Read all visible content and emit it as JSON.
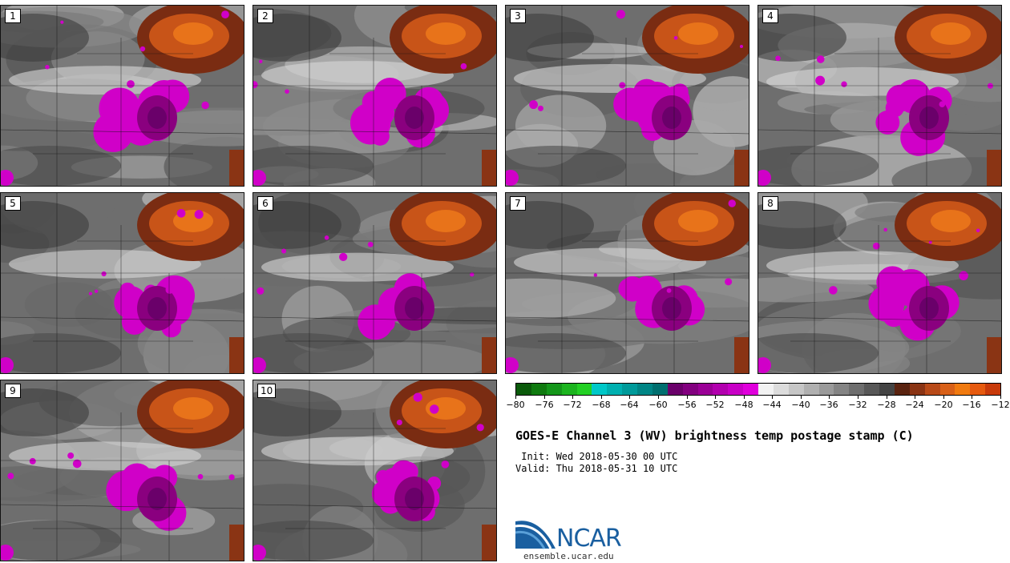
{
  "panels": [
    {
      "label": "1"
    },
    {
      "label": "2"
    },
    {
      "label": "3"
    },
    {
      "label": "4"
    },
    {
      "label": "5"
    },
    {
      "label": "6"
    },
    {
      "label": "7"
    },
    {
      "label": "8"
    },
    {
      "label": "9"
    },
    {
      "label": "10"
    }
  ],
  "colorbar": {
    "colors": [
      "#0a5a0a",
      "#0f7a0f",
      "#14961a",
      "#1cb41f",
      "#23d024",
      "#00c8c8",
      "#00b0b0",
      "#009a9a",
      "#008585",
      "#006f6f",
      "#6a006a",
      "#82007f",
      "#9a0096",
      "#b200ae",
      "#c800c6",
      "#e000dc",
      "#f2f2f2",
      "#dcdcdc",
      "#c6c6c6",
      "#b0b0b0",
      "#9a9a9a",
      "#848484",
      "#6e6e6e",
      "#585858",
      "#444444",
      "#5a2310",
      "#8a3414",
      "#b84a18",
      "#d86018",
      "#f07a10",
      "#e65a0f",
      "#c83a0a"
    ],
    "ticks": [
      "−80",
      "−76",
      "−72",
      "−68",
      "−64",
      "−60",
      "−56",
      "−52",
      "−48",
      "−44",
      "−40",
      "−36",
      "−32",
      "−28",
      "−24",
      "−20",
      "−16",
      "−12"
    ]
  },
  "title": "GOES-E Channel 3 (WV) brightness temp postage stamp (C)",
  "init": " Init: Wed 2018-05-30 00 UTC",
  "valid": "Valid: Thu 2018-05-31 10 UTC",
  "logo": {
    "text": "NCAR",
    "url": "ensemble.ucar.edu"
  }
}
